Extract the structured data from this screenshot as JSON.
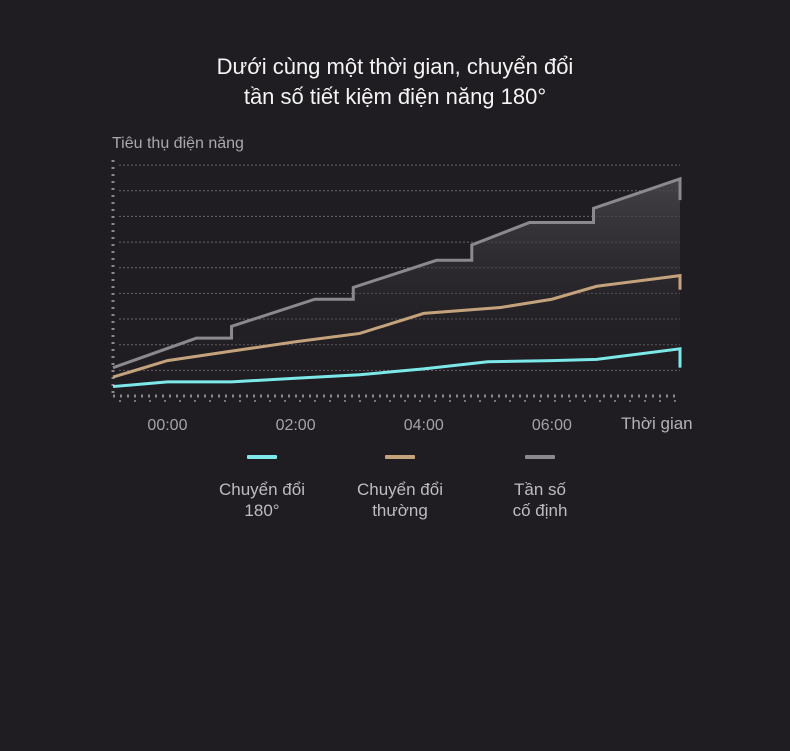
{
  "title_line1": "Dưới cùng một thời gian, chuyển đổi",
  "title_line2": "tần số tiết kiệm điện năng 180°",
  "chart_data": {
    "type": "line",
    "title": "Dưới cùng một thời gian, chuyển đổi tần số tiết kiệm điện năng 180°",
    "xlabel": "Thời gian",
    "ylabel": "Tiêu thụ điện năng",
    "x_ticks": [
      "00:00",
      "02:00",
      "04:00",
      "06:00"
    ],
    "x_range_hours": [
      -0.85,
      8.0
    ],
    "y_range": [
      0,
      10
    ],
    "grid": "horizontal dashed",
    "series": [
      {
        "name": "Chuyển đổi\n180°",
        "color": "#7de8ea",
        "points": [
          [
            -0.85,
            0.4
          ],
          [
            0.0,
            0.6
          ],
          [
            1.0,
            0.6
          ],
          [
            2.0,
            0.75
          ],
          [
            3.0,
            0.9
          ],
          [
            4.0,
            1.15
          ],
          [
            5.0,
            1.45
          ],
          [
            6.0,
            1.5
          ],
          [
            6.7,
            1.55
          ],
          [
            8.0,
            2.0
          ],
          [
            8.0,
            1.2
          ]
        ]
      },
      {
        "name": "Chuyển đổi\nthường",
        "color": "#c4a37c",
        "points": [
          [
            -0.85,
            0.8
          ],
          [
            0.0,
            1.5
          ],
          [
            1.0,
            1.9
          ],
          [
            2.0,
            2.3
          ],
          [
            3.0,
            2.65
          ],
          [
            4.0,
            3.5
          ],
          [
            5.2,
            3.75
          ],
          [
            6.0,
            4.1
          ],
          [
            6.7,
            4.65
          ],
          [
            8.0,
            5.1
          ],
          [
            8.0,
            4.5
          ]
        ]
      },
      {
        "name": "Tần số\ncố định",
        "color": "#8b898e",
        "points": [
          [
            -0.85,
            1.2
          ],
          [
            0.45,
            2.45
          ],
          [
            1.0,
            2.45
          ],
          [
            1.0,
            2.95
          ],
          [
            2.3,
            4.1
          ],
          [
            2.9,
            4.1
          ],
          [
            2.9,
            4.6
          ],
          [
            4.2,
            5.75
          ],
          [
            4.75,
            5.75
          ],
          [
            4.75,
            6.4
          ],
          [
            5.65,
            7.35
          ],
          [
            6.65,
            7.35
          ],
          [
            6.65,
            7.95
          ],
          [
            8.0,
            9.2
          ],
          [
            8.0,
            8.3
          ]
        ]
      }
    ]
  }
}
